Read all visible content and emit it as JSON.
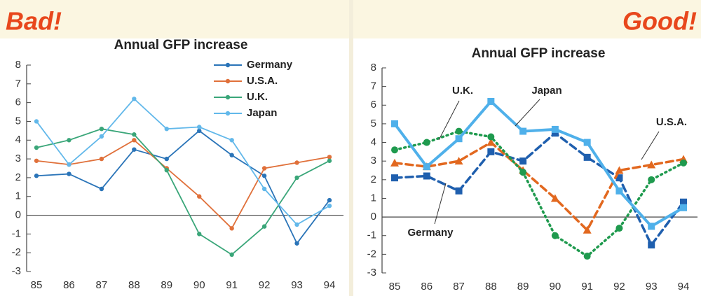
{
  "chart_data": [
    {
      "type": "line",
      "heading": "Bad!",
      "title": "Annual GFP increase",
      "categories": [
        "85",
        "86",
        "87",
        "88",
        "89",
        "90",
        "91",
        "92",
        "93",
        "94"
      ],
      "ylim": [
        -3,
        8
      ],
      "yticks": [
        -3,
        -2,
        -1,
        0,
        1,
        2,
        3,
        4,
        5,
        6,
        7,
        8
      ],
      "legend": "top-right",
      "series": [
        {
          "name": "Germany",
          "color": "#2a74b8",
          "style": "solid",
          "marker": "circle",
          "values": [
            2.1,
            2.2,
            1.4,
            3.5,
            3.0,
            4.5,
            3.2,
            2.1,
            -1.5,
            0.8
          ]
        },
        {
          "name": "U.S.A.",
          "color": "#e0703a",
          "style": "solid",
          "marker": "circle",
          "values": [
            2.9,
            2.7,
            3.0,
            4.0,
            2.5,
            1.0,
            -0.7,
            2.5,
            2.8,
            3.1
          ]
        },
        {
          "name": "U.K.",
          "color": "#3aa679",
          "style": "solid",
          "marker": "circle",
          "values": [
            3.6,
            4.0,
            4.6,
            4.3,
            2.4,
            -1.0,
            -2.1,
            -0.6,
            2.0,
            2.9
          ]
        },
        {
          "name": "Japan",
          "color": "#62b8ea",
          "style": "solid",
          "marker": "circle",
          "values": [
            5.0,
            2.7,
            4.2,
            6.2,
            4.6,
            4.7,
            4.0,
            1.4,
            -0.5,
            0.5
          ]
        }
      ]
    },
    {
      "type": "line",
      "heading": "Good!",
      "title": "Annual GFP increase",
      "categories": [
        "85",
        "86",
        "87",
        "88",
        "89",
        "90",
        "91",
        "92",
        "93",
        "94"
      ],
      "ylim": [
        -3,
        8
      ],
      "yticks": [
        -3,
        -2,
        -1,
        0,
        1,
        2,
        3,
        4,
        5,
        6,
        7,
        8
      ],
      "legend": "direct",
      "series": [
        {
          "name": "Germany",
          "color": "#1f5fae",
          "style": "dashed",
          "marker": "square",
          "values": [
            2.1,
            2.2,
            1.4,
            3.5,
            3.0,
            4.5,
            3.2,
            2.1,
            -1.5,
            0.8
          ]
        },
        {
          "name": "U.S.A.",
          "color": "#e2681f",
          "style": "dashed",
          "marker": "triangle",
          "values": [
            2.9,
            2.7,
            3.0,
            4.0,
            2.5,
            1.0,
            -0.7,
            2.5,
            2.8,
            3.1
          ]
        },
        {
          "name": "U.K.",
          "color": "#1f9a4e",
          "style": "dotted",
          "marker": "circle",
          "values": [
            3.6,
            4.0,
            4.6,
            4.3,
            2.4,
            -1.0,
            -2.1,
            -0.6,
            2.0,
            2.9
          ]
        },
        {
          "name": "Japan",
          "color": "#4fb0ea",
          "style": "solid",
          "marker": "square",
          "values": [
            5.0,
            2.7,
            4.2,
            6.2,
            4.6,
            4.7,
            4.0,
            1.4,
            -0.5,
            0.5
          ]
        }
      ]
    }
  ]
}
